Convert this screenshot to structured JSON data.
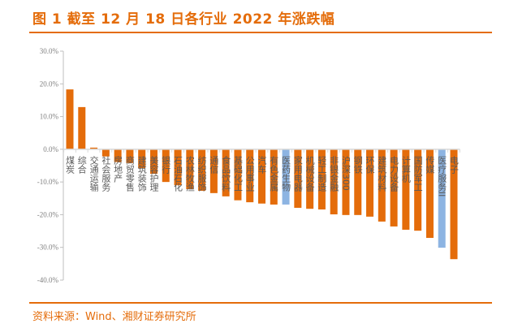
{
  "title": "图 1 截至 12 月 18 日各行业 2022 年涨跌幅",
  "source": "资料来源：Wind、湘财证券研究所",
  "colors": {
    "accent": "#E46C0A",
    "bar": "#E46C0A",
    "highlight": "#8DB4E2"
  },
  "chart_data": {
    "type": "bar",
    "title": "",
    "xlabel": "",
    "ylabel": "",
    "ylim": [
      -40,
      30
    ],
    "yticks": [
      "30.0%",
      "20.0%",
      "10.0%",
      "0.0%",
      "-10.0%",
      "-20.0%",
      "-30.0%",
      "-40.0%"
    ],
    "ytick_values": [
      30,
      20,
      10,
      0,
      -10,
      -20,
      -30,
      -40
    ],
    "grid": false,
    "unit": "%",
    "categories": [
      "煤炭",
      "综合",
      "交通运输",
      "社会服务",
      "房地产",
      "商贸零售",
      "建筑装饰",
      "美容护理",
      "银行",
      "石油石化",
      "农林牧渔",
      "纺织服饰",
      "通信",
      "食品饮料",
      "基础化工",
      "公用事业",
      "汽车",
      "有色金属",
      "医药生物",
      "家用电器",
      "机械设备",
      "轻工制造",
      "非银金融",
      "沪深300",
      "钢铁",
      "环保",
      "建筑材料",
      "电力设备",
      "计算机",
      "国防军工",
      "传媒",
      "医疗服务II",
      "电子"
    ],
    "values": [
      18.3,
      12.9,
      0.5,
      -2.2,
      -3.9,
      -4.2,
      -5.8,
      -7.5,
      -10.0,
      -11.0,
      -12.2,
      -12.7,
      -13.4,
      -14.4,
      -15.6,
      -16.2,
      -16.6,
      -16.9,
      -16.9,
      -17.9,
      -18.2,
      -18.4,
      -19.9,
      -20.1,
      -20.1,
      -20.6,
      -22.1,
      -23.6,
      -24.6,
      -24.9,
      -27.1,
      -30.1,
      -33.6
    ],
    "highlighted": [
      "医药生物",
      "医疗服务II"
    ]
  }
}
